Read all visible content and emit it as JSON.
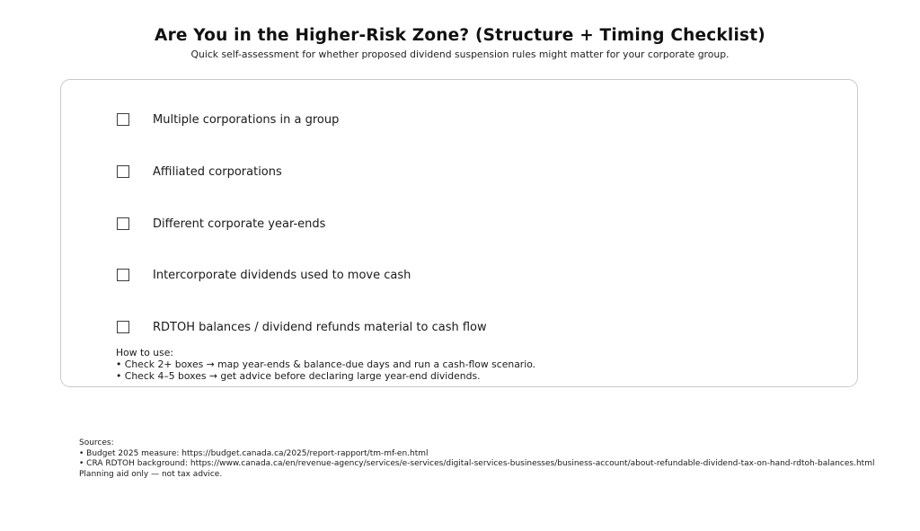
{
  "header": {
    "title": "Are You in the Higher-Risk Zone? (Structure + Timing Checklist)",
    "subtitle": "Quick self-assessment for whether proposed dividend suspension rules might matter for your corporate group."
  },
  "checklist": {
    "items": [
      {
        "label": "Multiple corporations in a group",
        "checked": false
      },
      {
        "label": "Affiliated corporations",
        "checked": false
      },
      {
        "label": "Different corporate year-ends",
        "checked": false
      },
      {
        "label": "Intercorporate dividends used to move cash",
        "checked": false
      },
      {
        "label": "RDTOH balances / dividend refunds material to cash flow",
        "checked": false
      }
    ],
    "how_to_use": {
      "heading": "How to use:",
      "lines": [
        "• Check 2+ boxes → map year-ends & balance-due days and run a cash-flow scenario.",
        "• Check 4–5 boxes → get advice before declaring large year-end dividends."
      ]
    }
  },
  "footer": {
    "heading": "Sources:",
    "lines": [
      "• Budget 2025 measure: https://budget.canada.ca/2025/report-rapport/tm-mf-en.html",
      "• CRA RDTOH background: https://www.canada.ca/en/revenue-agency/services/e-services/digital-services-businesses/business-account/about-refundable-dividend-tax-on-hand-rdtoh-balances.html",
      "Planning aid only — not tax advice."
    ]
  },
  "colors": {
    "card_border": "#c9c9c9",
    "checkbox_border": "#3d3d3d",
    "text": "#1a1a1a"
  }
}
